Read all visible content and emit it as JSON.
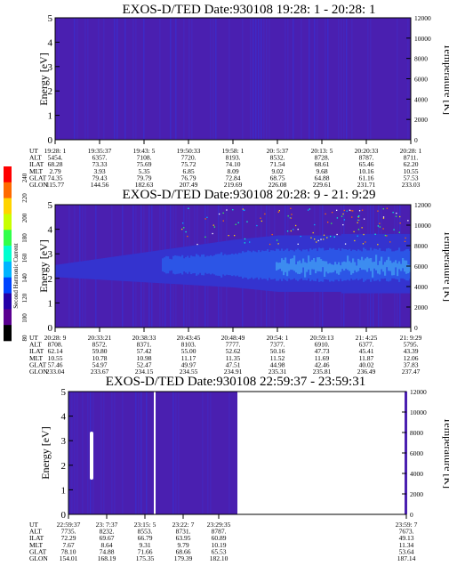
{
  "colors": {
    "background_plot": "#4a1fb0",
    "spectrum_mid": "#2a3ad6",
    "spectrum_hot": "#3f88ee",
    "streak": "#ffffff",
    "axis": "#000000"
  },
  "colorbar": {
    "label": "Second Harmonic Current",
    "ticks": [
      "240",
      "220",
      "200",
      "180",
      "160",
      "140",
      "120",
      "100",
      "80"
    ],
    "colors": [
      "#ff0000",
      "#ff6a00",
      "#ffd400",
      "#c8ff00",
      "#32ff4a",
      "#00ffd0",
      "#00b4ff",
      "#0044ff",
      "#2400a8",
      "#5a0090",
      "#000000"
    ]
  },
  "chart_data": [
    {
      "type": "heatmap",
      "title": "EXOS-D/TED   Date:930108  19:28: 1 - 20:28: 1",
      "ylabel": "Energy [eV]",
      "ylabel_right": "Temperature [K]",
      "ylim": [
        0,
        5
      ],
      "ylim_right": [
        0,
        12000
      ],
      "yticks": [
        "0",
        "1",
        "2",
        "3",
        "4",
        "5"
      ],
      "yticks_right": [
        "0",
        "2000",
        "4000",
        "6000",
        "8000",
        "10000",
        "12000"
      ],
      "table_row_labels": [
        "UT",
        "ALT",
        "ILAT",
        "MLT",
        "GLAT",
        "GLON"
      ],
      "table_columns": [
        [
          "19:28: 1",
          "5454.",
          "68.28",
          "2.79",
          "74.35",
          "115.77"
        ],
        [
          "19:35:37",
          "6357.",
          "73.33",
          "3.93",
          "79.43",
          "144.56"
        ],
        [
          "19:43: 5",
          "7108.",
          "75.69",
          "5.35",
          "79.79",
          "182.63"
        ],
        [
          "19:50:33",
          "7720.",
          "75.72",
          "6.85",
          "76.79",
          "207.49"
        ],
        [
          "19:58: 1",
          "8193.",
          "74.10",
          "8.09",
          "72.84",
          "219.69"
        ],
        [
          "20: 5:37",
          "8532.",
          "71.54",
          "9.02",
          "68.75",
          "226.08"
        ],
        [
          "20:13: 5",
          "8728.",
          "68.61",
          "9.68",
          "64.88",
          "229.61"
        ],
        [
          "20:20:33",
          "8787.",
          "65.46",
          "10.16",
          "61.16",
          "231.71"
        ],
        [
          "20:28: 1",
          "8711.",
          "62.20",
          "10.55",
          "57.53",
          "233.03"
        ]
      ]
    },
    {
      "type": "heatmap",
      "title": "EXOS-D/TED   Date:930108  20:28: 9 - 21: 9:29",
      "ylabel": "Energy [eV]",
      "ylabel_right": "Temperature [K]",
      "ylim": [
        0,
        5
      ],
      "ylim_right": [
        0,
        12000
      ],
      "yticks": [
        "0",
        "1",
        "2",
        "3",
        "4",
        "5"
      ],
      "yticks_right": [
        "0",
        "2000",
        "4000",
        "6000",
        "8000",
        "10000",
        "12000"
      ],
      "table_row_labels": [
        "UT",
        "ALT",
        "ILAT",
        "MLT",
        "GLAT",
        "GLON"
      ],
      "table_columns": [
        [
          "20:28: 9",
          "8708.",
          "62.14",
          "10.55",
          "57.46",
          "233.04"
        ],
        [
          "20:33:21",
          "8572.",
          "59.80",
          "10.78",
          "54.97",
          "233.67"
        ],
        [
          "20:38:33",
          "8371.",
          "57.42",
          "10.98",
          "52.47",
          "234.15"
        ],
        [
          "20:43:45",
          "8103.",
          "55.00",
          "11.17",
          "49.97",
          "234.55"
        ],
        [
          "20:48:49",
          "7777.",
          "52.62",
          "11.35",
          "47.51",
          "234.91"
        ],
        [
          "20:54: 1",
          "7377.",
          "50.16",
          "11.52",
          "44.98",
          "235.31"
        ],
        [
          "20:59:13",
          "6910.",
          "47.73",
          "11.69",
          "42.46",
          "235.81"
        ],
        [
          "21: 4:25",
          "6377.",
          "45.41",
          "11.87",
          "40.02",
          "236.49"
        ],
        [
          "21: 9:29",
          "5795.",
          "43.39",
          "12.06",
          "37.83",
          "237.47"
        ]
      ]
    },
    {
      "type": "heatmap",
      "title": "EXOS-D/TED   Date:930108  22:59:37 - 23:59:31",
      "ylabel": "Energy [eV]",
      "ylabel_right": "Temperature [K]",
      "ylim": [
        0,
        5
      ],
      "ylim_right": [
        0,
        12000
      ],
      "yticks": [
        "0",
        "1",
        "2",
        "3",
        "4",
        "5"
      ],
      "yticks_right": [
        "0",
        "2000",
        "4000",
        "6000",
        "8000",
        "10000",
        "12000"
      ],
      "table_row_labels": [
        "UT",
        "ALT",
        "ILAT",
        "MLT",
        "GLAT",
        "GLON"
      ],
      "table_columns": [
        [
          "22:59:37",
          "7735.",
          "72.29",
          "7.67",
          "78.10",
          "154.01"
        ],
        [
          "23: 7:37",
          "8232.",
          "69.67",
          "8.64",
          "74.88",
          "168.19"
        ],
        [
          "23:15: 5",
          "8553.",
          "66.79",
          "9.31",
          "71.66",
          "175.35"
        ],
        [
          "23:22: 7",
          "8731.",
          "63.95",
          "9.79",
          "68.66",
          "179.39"
        ],
        [
          "23:29:35",
          "8787.",
          "60.89",
          "10.19",
          "65.53",
          "182.10"
        ],
        [
          "23:59: 7",
          "7673.",
          "49.13",
          "11.34",
          "53.64",
          "187.14"
        ]
      ]
    }
  ]
}
